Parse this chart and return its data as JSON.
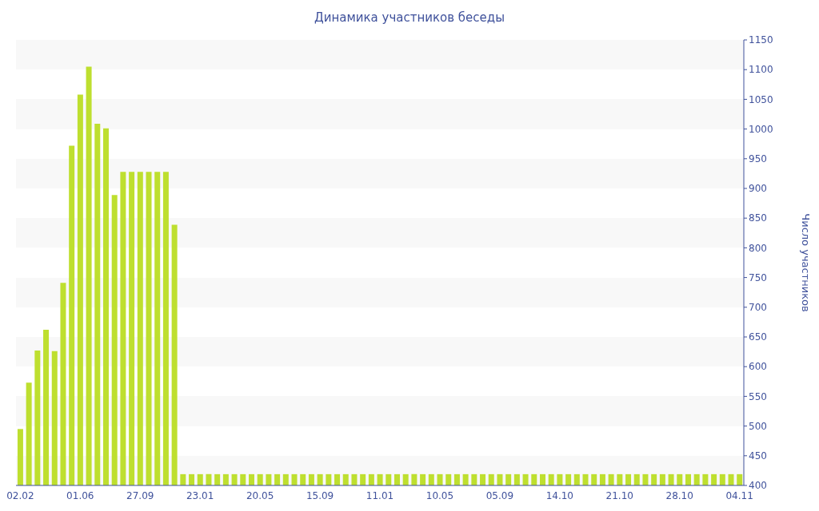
{
  "chart_data": {
    "type": "bar",
    "title": "Динамика участников беседы",
    "ylabel": "Число участников",
    "categories": [
      "02.02",
      null,
      null,
      null,
      null,
      null,
      null,
      "01.06",
      null,
      null,
      null,
      null,
      null,
      null,
      "27.09",
      null,
      null,
      null,
      null,
      null,
      null,
      "23.01",
      null,
      null,
      null,
      null,
      null,
      null,
      "20.05",
      null,
      null,
      null,
      null,
      null,
      null,
      "15.09",
      null,
      null,
      null,
      null,
      null,
      null,
      "11.01",
      null,
      null,
      null,
      null,
      null,
      null,
      "10.05",
      null,
      null,
      null,
      null,
      null,
      null,
      "05.09",
      null,
      null,
      null,
      null,
      null,
      null,
      "14.10",
      null,
      null,
      null,
      null,
      null,
      null,
      "21.10",
      null,
      null,
      null,
      null,
      null,
      null,
      "28.10",
      null,
      null,
      null,
      null,
      null,
      null,
      "04.11"
    ],
    "values": [
      495,
      573,
      627,
      662,
      626,
      741,
      972,
      1058,
      1105,
      1009,
      1001,
      889,
      928,
      928,
      928,
      928,
      928,
      928,
      839,
      419,
      419,
      419,
      419,
      419,
      419,
      419,
      419,
      419,
      419,
      419,
      419,
      419,
      419,
      419,
      419,
      419,
      419,
      419,
      419,
      419,
      419,
      419,
      419,
      419,
      419,
      419,
      419,
      419,
      419,
      419,
      419,
      419,
      419,
      419,
      419,
      419,
      419,
      419,
      419,
      419,
      419,
      419,
      419,
      419,
      419,
      419,
      419,
      419,
      419,
      419,
      419,
      419,
      419,
      419,
      419,
      419,
      419,
      419,
      419,
      419,
      419,
      419,
      419,
      419,
      419
    ],
    "color": "#bedf2f",
    "ylim": [
      400,
      1150
    ],
    "yticks": [
      400,
      450,
      500,
      550,
      600,
      650,
      700,
      750,
      800,
      850,
      900,
      950,
      1000,
      1050,
      1100,
      1150
    ]
  }
}
